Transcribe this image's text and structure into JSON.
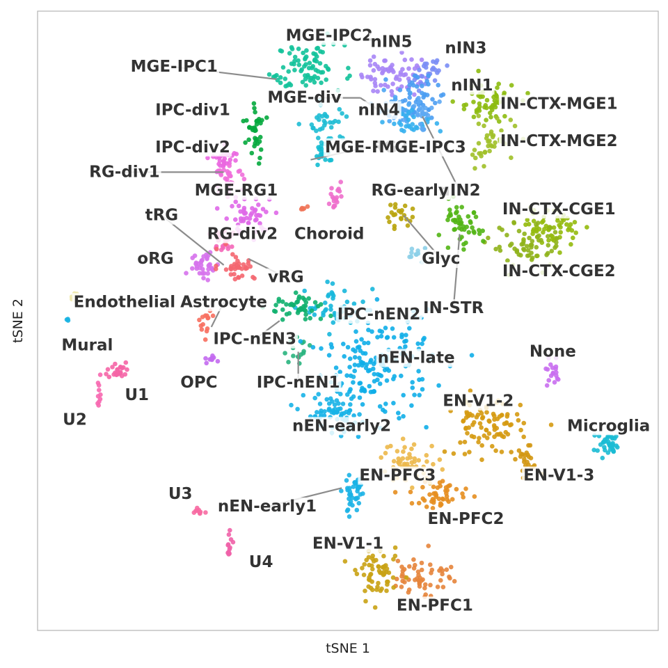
{
  "chart_data": {
    "type": "scatter",
    "title": "",
    "xlabel": "tSNE 1",
    "ylabel": "tSNE 2",
    "xlim": [
      0,
      100
    ],
    "ylim": [
      0,
      100
    ],
    "grid": false,
    "legend": "none",
    "clusters": [
      {
        "name": "MGE-IPC2",
        "color": "#12c29a",
        "center": [
          44,
          91
        ],
        "spread": [
          4.5,
          3
        ],
        "n": 70,
        "label": [
          47,
          96
        ],
        "pointer": null
      },
      {
        "name": "MGE-IPC1",
        "color": "#12c29a",
        "center": [
          39,
          89
        ],
        "spread": [
          1.5,
          1
        ],
        "n": 10,
        "label": [
          22,
          91
        ],
        "pointer": [
          38.5,
          89
        ]
      },
      {
        "name": "IPC-div1",
        "color": "#04a83d",
        "center": [
          35,
          80
        ],
        "spread": [
          1.2,
          4
        ],
        "n": 35,
        "label": [
          25,
          84
        ],
        "pointer": null
      },
      {
        "name": "MGE-div",
        "color": "#1fbcd4",
        "center": [
          47,
          82
        ],
        "spread": [
          2.5,
          3
        ],
        "n": 35,
        "label": [
          43,
          86
        ],
        "pointer": [
          52,
          86
        ]
      },
      {
        "name": "MGE-RG2",
        "color": "#13bcd2",
        "center": [
          46,
          77
        ],
        "spread": [
          1.5,
          1.5
        ],
        "n": 18,
        "label": [
          53,
          78
        ],
        "pointer": [
          44,
          76
        ]
      },
      {
        "name": "MGE-RG1",
        "color": "#ee6fcc",
        "center": [
          48,
          70
        ],
        "spread": [
          1,
          2
        ],
        "n": 18,
        "label": [
          32,
          71
        ],
        "pointer": null
      },
      {
        "name": "nIN5",
        "color": "#a785f6",
        "center": [
          57,
          90
        ],
        "spread": [
          4,
          3
        ],
        "n": 65,
        "label": [
          57,
          95
        ],
        "pointer": null
      },
      {
        "name": "nIN3",
        "color": "#7a8df5",
        "center": [
          63,
          90
        ],
        "spread": [
          2.5,
          2
        ],
        "n": 25,
        "label": [
          69,
          94
        ],
        "pointer": null
      },
      {
        "name": "nIN1",
        "color": "#4b9df2",
        "center": [
          61,
          86
        ],
        "spread": [
          3,
          3
        ],
        "n": 45,
        "label": [
          70,
          88
        ],
        "pointer": null
      },
      {
        "name": "nIN4",
        "color": "#4ea6f3",
        "center": [
          58,
          84
        ],
        "spread": [
          3,
          2
        ],
        "n": 35,
        "label": [
          55,
          84
        ],
        "pointer": [
          52,
          86
        ]
      },
      {
        "name": "MGE-IPC3",
        "color": "#35b0ee",
        "center": [
          60,
          82
        ],
        "spread": [
          3,
          2
        ],
        "n": 30,
        "label": [
          62,
          78
        ],
        "pointer": null
      },
      {
        "name": "nIN2",
        "color": "#5ea8f3",
        "center": [
          62,
          84
        ],
        "spread": [
          2,
          2
        ],
        "n": 20,
        "label": [
          68,
          71
        ],
        "pointer": [
          62,
          83
        ]
      },
      {
        "name": "IN-CTX-MGE1",
        "color": "#8dbb10",
        "center": [
          72,
          85
        ],
        "spread": [
          4,
          3
        ],
        "n": 55,
        "label": [
          84,
          85
        ],
        "pointer": null
      },
      {
        "name": "IN-CTX-MGE2",
        "color": "#a0c028",
        "center": [
          73,
          79
        ],
        "spread": [
          3.5,
          3
        ],
        "n": 40,
        "label": [
          84,
          79
        ],
        "pointer": null
      },
      {
        "name": "IN-CTX-CGE1",
        "color": "#94ba0c",
        "center": [
          83,
          65
        ],
        "spread": [
          3.5,
          2.5
        ],
        "n": 60,
        "label": [
          84,
          68
        ],
        "pointer": null
      },
      {
        "name": "IN-CTX-CGE2",
        "color": "#8fb21b",
        "center": [
          79,
          62
        ],
        "spread": [
          5,
          3
        ],
        "n": 60,
        "label": [
          84,
          58
        ],
        "pointer": null
      },
      {
        "name": "IN-STR",
        "color": "#52b515",
        "center": [
          68,
          65
        ],
        "spread": [
          3,
          3
        ],
        "n": 50,
        "label": [
          67,
          52
        ],
        "pointer": [
          68,
          64
        ]
      },
      {
        "name": "RG-early",
        "color": "#b8a30a",
        "center": [
          58,
          67
        ],
        "spread": [
          2,
          1.5
        ],
        "n": 22,
        "label": [
          60,
          71
        ],
        "pointer": null
      },
      {
        "name": "Glyc",
        "color": "#8ccfe8",
        "center": [
          61,
          61
        ],
        "spread": [
          1.5,
          1
        ],
        "n": 10,
        "label": [
          65,
          60
        ],
        "pointer": [
          59,
          67
        ]
      },
      {
        "name": "Choroid",
        "color": "#f07356",
        "center": [
          43,
          68
        ],
        "spread": [
          0.6,
          0.5
        ],
        "n": 5,
        "label": [
          47,
          64
        ],
        "pointer": null
      },
      {
        "name": "IPC-div2",
        "color": "#ea67e0",
        "center": [
          30,
          76
        ],
        "spread": [
          2,
          2
        ],
        "n": 28,
        "label": [
          25,
          78
        ],
        "pointer": null
      },
      {
        "name": "RG-div1",
        "color": "#ef6fda",
        "center": [
          31,
          73
        ],
        "spread": [
          1.8,
          1.5
        ],
        "n": 28,
        "label": [
          14,
          74
        ],
        "pointer": [
          30,
          74
        ]
      },
      {
        "name": "RG-div2",
        "color": "#df68e8",
        "center": [
          34,
          67
        ],
        "spread": [
          3.5,
          2.5
        ],
        "n": 50,
        "label": [
          33,
          64
        ],
        "pointer": null
      },
      {
        "name": "tRG",
        "color": "#f466b8",
        "center": [
          30,
          63
        ],
        "spread": [
          2,
          2
        ],
        "n": 30,
        "label": [
          20,
          67
        ],
        "pointer": [
          30,
          59
        ]
      },
      {
        "name": "oRG",
        "color": "#d672ec",
        "center": [
          27,
          59
        ],
        "spread": [
          2,
          2
        ],
        "n": 35,
        "label": [
          19,
          60
        ],
        "pointer": null
      },
      {
        "name": "vRG",
        "color": "#f4666f",
        "center": [
          32,
          59
        ],
        "spread": [
          2.5,
          2
        ],
        "n": 35,
        "label": [
          40,
          57
        ],
        "pointer": [
          34,
          60
        ]
      },
      {
        "name": "Astrocyte",
        "color": "#f76f5f",
        "center": [
          27,
          50
        ],
        "spread": [
          1,
          1.5
        ],
        "n": 14,
        "label": [
          30,
          53
        ],
        "pointer": [
          28,
          49
        ]
      },
      {
        "name": "Endothelial",
        "color": "#ede7a9",
        "center": [
          6,
          54
        ],
        "spread": [
          0.5,
          1
        ],
        "n": 6,
        "label": [
          14,
          53
        ],
        "pointer": null
      },
      {
        "name": "Mural",
        "color": "#18b2e2",
        "center": [
          5,
          50
        ],
        "spread": [
          0.3,
          0.3
        ],
        "n": 3,
        "label": [
          8,
          46
        ],
        "pointer": null
      },
      {
        "name": "OPC",
        "color": "#c36aef",
        "center": [
          28,
          44
        ],
        "spread": [
          1,
          0.8
        ],
        "n": 10,
        "label": [
          26,
          40
        ],
        "pointer": null
      },
      {
        "name": "U1",
        "color": "#f565a6",
        "center": [
          13,
          42
        ],
        "spread": [
          1.5,
          1.2
        ],
        "n": 25,
        "label": [
          16,
          38
        ],
        "pointer": null
      },
      {
        "name": "U2",
        "color": "#f768b0",
        "center": [
          10,
          38
        ],
        "spread": [
          0.5,
          2
        ],
        "n": 10,
        "label": [
          6,
          34
        ],
        "pointer": null
      },
      {
        "name": "IPC-nEN2",
        "color": "#17b7dc",
        "center": [
          48,
          52
        ],
        "spread": [
          4,
          3
        ],
        "n": 45,
        "label": [
          55,
          51
        ],
        "pointer": null
      },
      {
        "name": "IPC-nEN3",
        "color": "#10b06e",
        "center": [
          42,
          52
        ],
        "spread": [
          4,
          2
        ],
        "n": 45,
        "label": [
          35,
          47
        ],
        "pointer": [
          39,
          50
        ]
      },
      {
        "name": "IPC-nEN1",
        "color": "#29b47e",
        "center": [
          42,
          45
        ],
        "spread": [
          2,
          1.5
        ],
        "n": 15,
        "label": [
          42,
          40
        ],
        "pointer": [
          42,
          45
        ]
      },
      {
        "name": "nEN-late",
        "color": "#10aee8",
        "center": [
          55,
          43
        ],
        "spread": [
          7,
          7
        ],
        "n": 170,
        "label": [
          61,
          44
        ],
        "pointer": null
      },
      {
        "name": "nEN-early2",
        "color": "#17b2e7",
        "center": [
          48,
          35
        ],
        "spread": [
          4,
          3
        ],
        "n": 70,
        "label": [
          49,
          33
        ],
        "pointer": null
      },
      {
        "name": "nEN-early1",
        "color": "#1bb3e5",
        "center": [
          51,
          22
        ],
        "spread": [
          1.5,
          3
        ],
        "n": 40,
        "label": [
          37,
          20
        ],
        "pointer": [
          49,
          23
        ]
      },
      {
        "name": "EN-V1-2",
        "color": "#d59a11",
        "center": [
          72,
          33
        ],
        "spread": [
          5,
          4
        ],
        "n": 90,
        "label": [
          71,
          37
        ],
        "pointer": null
      },
      {
        "name": "EN-V1-3",
        "color": "#d39712",
        "center": [
          79,
          27
        ],
        "spread": [
          2,
          2
        ],
        "n": 25,
        "label": [
          84,
          25
        ],
        "pointer": null
      },
      {
        "name": "EN-PFC3",
        "color": "#ecb84a",
        "center": [
          60,
          27
        ],
        "spread": [
          4,
          3
        ],
        "n": 55,
        "label": [
          58,
          25
        ],
        "pointer": null
      },
      {
        "name": "EN-PFC2",
        "color": "#e58e1f",
        "center": [
          65,
          22
        ],
        "spread": [
          4,
          2
        ],
        "n": 45,
        "label": [
          69,
          18
        ],
        "pointer": null
      },
      {
        "name": "EN-PFC1",
        "color": "#e5843b",
        "center": [
          62,
          9
        ],
        "spread": [
          4,
          3
        ],
        "n": 55,
        "label": [
          64,
          4
        ],
        "pointer": null
      },
      {
        "name": "EN-V1-1",
        "color": "#c9a214",
        "center": [
          55,
          9
        ],
        "spread": [
          3,
          3
        ],
        "n": 60,
        "label": [
          50,
          14
        ],
        "pointer": null
      },
      {
        "name": "None",
        "color": "#c96ff0",
        "center": [
          83,
          41
        ],
        "spread": [
          1,
          2
        ],
        "n": 18,
        "label": [
          83,
          45
        ],
        "pointer": null
      },
      {
        "name": "Microglia",
        "color": "#1bbbd4",
        "center": [
          92,
          30
        ],
        "spread": [
          2,
          1.5
        ],
        "n": 35,
        "label": [
          92,
          33
        ],
        "pointer": null
      },
      {
        "name": "U3",
        "color": "#f76aa2",
        "center": [
          26,
          19
        ],
        "spread": [
          1,
          0.5
        ],
        "n": 10,
        "label": [
          23,
          22
        ],
        "pointer": null
      },
      {
        "name": "U4",
        "color": "#f062a8",
        "center": [
          31,
          14
        ],
        "spread": [
          0.6,
          1.5
        ],
        "n": 12,
        "label": [
          36,
          11
        ],
        "pointer": null
      }
    ]
  }
}
